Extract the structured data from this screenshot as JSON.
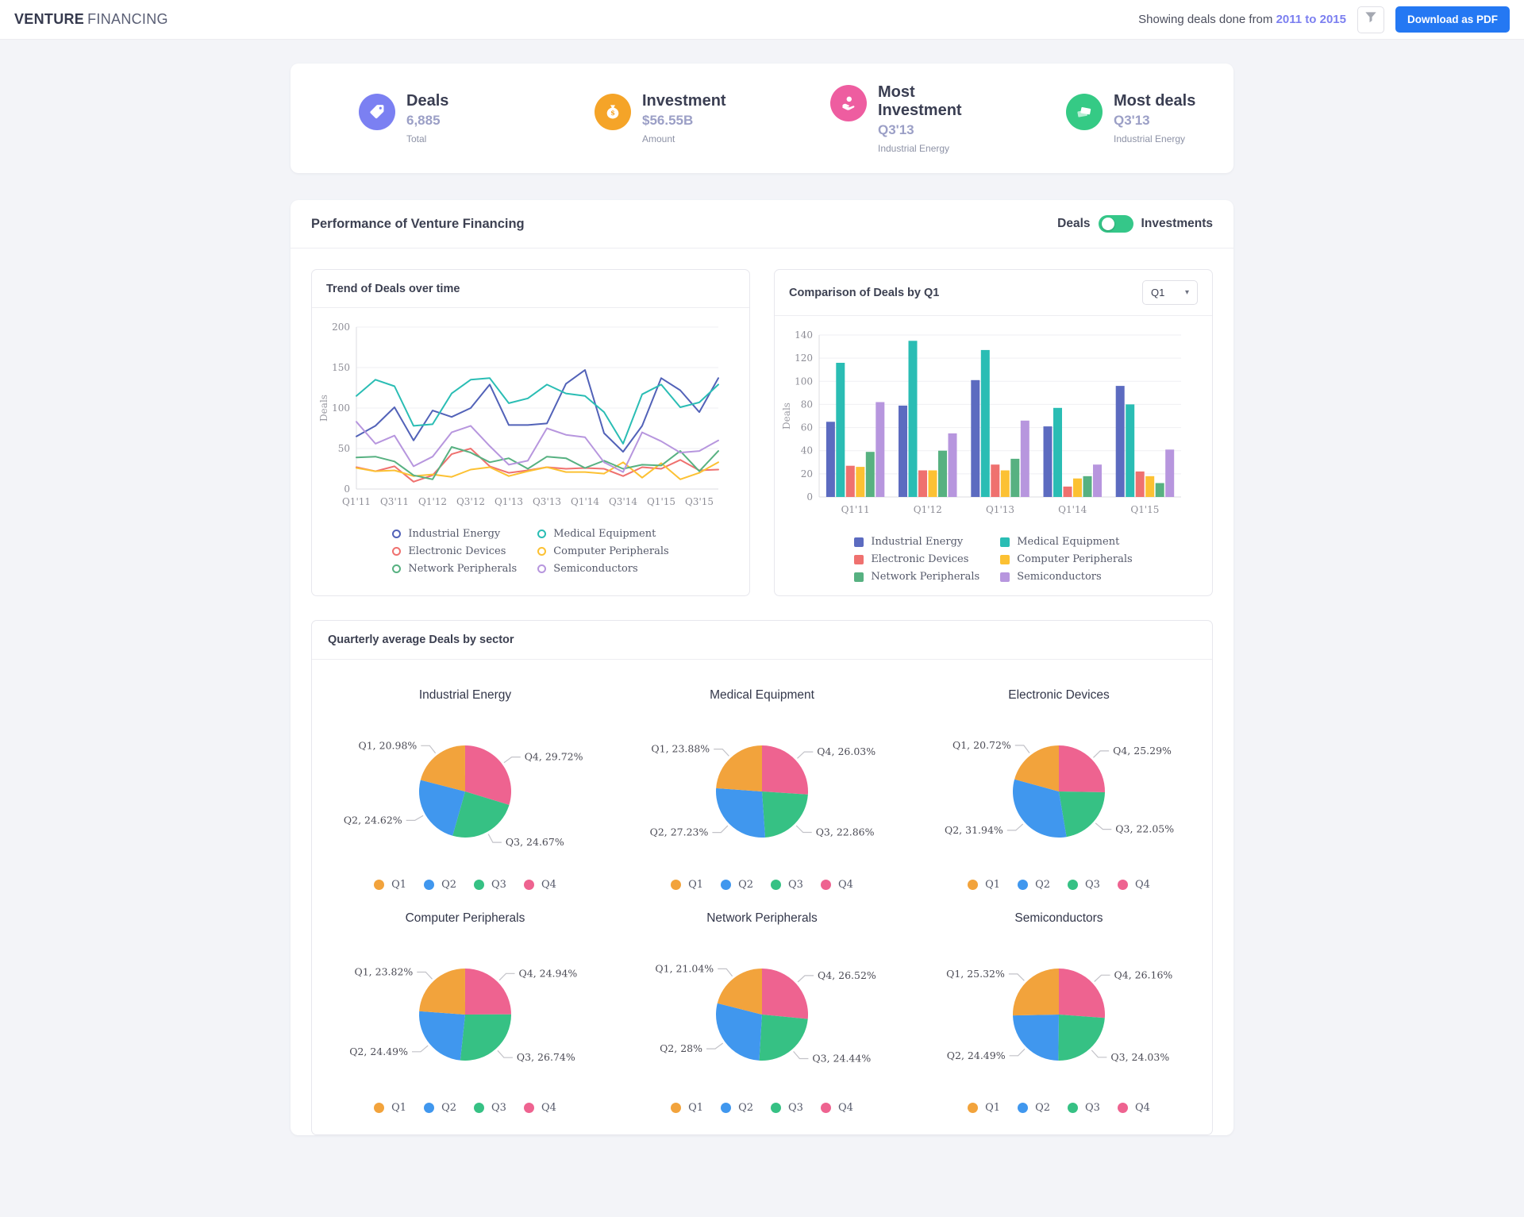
{
  "header": {
    "logo_bold": "VENTURE",
    "logo_light": "FINANCING",
    "showing_text": "Showing deals done from",
    "date_range": "2011 to 2015",
    "download_label": "Download as PDF"
  },
  "stats": [
    {
      "title": "Deals",
      "value": "6,885",
      "subtitle": "Total",
      "icon": "tag-icon",
      "color": "#7b80f2"
    },
    {
      "title": "Investment",
      "value": "$56.55B",
      "subtitle": "Amount",
      "icon": "money-bag-icon",
      "color": "#f5a428"
    },
    {
      "title": "Most Investment",
      "value": "Q3'13",
      "subtitle": "Industrial Energy",
      "icon": "hand-coin-icon",
      "color": "#ee5da0"
    },
    {
      "title": "Most deals",
      "value": "Q3'13",
      "subtitle": "Industrial Energy",
      "icon": "cash-notes-icon",
      "color": "#35ca85"
    }
  ],
  "performance": {
    "title": "Performance of Venture Financing",
    "toggle_left": "Deals",
    "toggle_right": "Investments",
    "toggle_color": "#35c789"
  },
  "sectors": [
    "Industrial Energy",
    "Medical Equipment",
    "Electronic Devices",
    "Computer Peripherals",
    "Network Peripherals",
    "Semiconductors"
  ],
  "quarter_legend": [
    "Q1",
    "Q2",
    "Q3",
    "Q4"
  ],
  "quarter_colors": [
    "#f2a33c",
    "#4097ee",
    "#36c184",
    "#ee6390"
  ],
  "quarterly_section_title": "Quarterly average Deals by sector",
  "chart_data": [
    {
      "type": "line",
      "title": "Trend of Deals over time",
      "ylabel": "Deals",
      "ylim": [
        0,
        200
      ],
      "yticks": [
        0,
        50,
        100,
        150,
        200
      ],
      "grid": "horizontal",
      "legend_position": "bottom",
      "x": [
        "Q1'11",
        "Q2'11",
        "Q3'11",
        "Q4'11",
        "Q1'12",
        "Q2'12",
        "Q3'12",
        "Q4'12",
        "Q1'13",
        "Q2'13",
        "Q3'13",
        "Q4'13",
        "Q1'14",
        "Q2'14",
        "Q3'14",
        "Q4'14",
        "Q1'15",
        "Q2'15",
        "Q3'15",
        "Q4'15"
      ],
      "x_ticks_shown": [
        "Q1'11",
        "Q3'11",
        "Q1'12",
        "Q3'12",
        "Q1'13",
        "Q3'13",
        "Q1'14",
        "Q3'14",
        "Q1'15",
        "Q3'15"
      ],
      "series": [
        {
          "name": "Industrial Energy",
          "color": "#5262b8",
          "values": [
            65,
            78,
            101,
            60,
            97,
            89,
            100,
            129,
            79,
            79,
            81,
            130,
            147,
            69,
            46,
            78,
            137,
            122,
            95,
            137
          ]
        },
        {
          "name": "Medical Equipment",
          "color": "#2abdb4",
          "values": [
            115,
            135,
            127,
            78,
            80,
            118,
            135,
            137,
            106,
            112,
            129,
            118,
            115,
            95,
            56,
            117,
            129,
            101,
            107,
            129
          ]
        },
        {
          "name": "Electronic Devices",
          "color": "#ef716f",
          "values": [
            27,
            22,
            28,
            9,
            17,
            43,
            50,
            28,
            20,
            23,
            27,
            25,
            26,
            25,
            16,
            27,
            25,
            36,
            23,
            24
          ]
        },
        {
          "name": "Computer Peripherals",
          "color": "#fcc133",
          "values": [
            26,
            22,
            23,
            16,
            18,
            15,
            24,
            27,
            16,
            22,
            27,
            21,
            21,
            19,
            33,
            14,
            32,
            12,
            20,
            33
          ]
        },
        {
          "name": "Network Peripherals",
          "color": "#57b181",
          "values": [
            39,
            40,
            34,
            17,
            12,
            52,
            45,
            33,
            38,
            25,
            40,
            38,
            26,
            35,
            25,
            30,
            29,
            47,
            22,
            47
          ]
        },
        {
          "name": "Semiconductors",
          "color": "#b796de",
          "values": [
            83,
            56,
            66,
            28,
            40,
            70,
            78,
            53,
            30,
            35,
            75,
            67,
            64,
            33,
            21,
            70,
            59,
            45,
            47,
            60
          ]
        }
      ]
    },
    {
      "type": "bar",
      "title": "Comparison of Deals by Q1",
      "selector_value": "Q1",
      "ylabel": "Deals",
      "ylim": [
        0,
        140
      ],
      "yticks": [
        0,
        20,
        40,
        60,
        80,
        100,
        120,
        140
      ],
      "grid": "horizontal",
      "legend_position": "bottom",
      "categories": [
        "Q1'11",
        "Q1'12",
        "Q1'13",
        "Q1'14",
        "Q1'15"
      ],
      "series": [
        {
          "name": "Industrial Energy",
          "color": "#5c6bc0",
          "values": [
            65,
            79,
            101,
            61,
            96
          ]
        },
        {
          "name": "Medical Equipment",
          "color": "#2abdb4",
          "values": [
            116,
            135,
            127,
            77,
            80
          ]
        },
        {
          "name": "Electronic Devices",
          "color": "#ef716f",
          "values": [
            27,
            23,
            28,
            9,
            22
          ]
        },
        {
          "name": "Computer Peripherals",
          "color": "#fcc133",
          "values": [
            26,
            23,
            23,
            16,
            18
          ]
        },
        {
          "name": "Network Peripherals",
          "color": "#57b181",
          "values": [
            39,
            40,
            33,
            18,
            12
          ]
        },
        {
          "name": "Semiconductors",
          "color": "#b796de",
          "values": [
            82,
            55,
            66,
            28,
            41
          ]
        }
      ]
    },
    {
      "type": "pie",
      "title": "Industrial Energy",
      "slices": [
        {
          "label": "Q1",
          "pct": 20.98,
          "display": "Q1, 20.98%"
        },
        {
          "label": "Q2",
          "pct": 24.62,
          "display": "Q2, 24.62%"
        },
        {
          "label": "Q3",
          "pct": 24.67,
          "display": "Q3, 24.67%"
        },
        {
          "label": "Q4",
          "pct": 29.72,
          "display": "Q4, 29.72%"
        }
      ]
    },
    {
      "type": "pie",
      "title": "Medical Equipment",
      "slices": [
        {
          "label": "Q1",
          "pct": 23.88,
          "display": "Q1, 23.88%"
        },
        {
          "label": "Q2",
          "pct": 27.23,
          "display": "Q2, 27.23%"
        },
        {
          "label": "Q3",
          "pct": 22.86,
          "display": "Q3, 22.86%"
        },
        {
          "label": "Q4",
          "pct": 26.03,
          "display": "Q4, 26.03%"
        }
      ]
    },
    {
      "type": "pie",
      "title": "Electronic Devices",
      "slices": [
        {
          "label": "Q1",
          "pct": 20.72,
          "display": "Q1, 20.72%"
        },
        {
          "label": "Q2",
          "pct": 31.94,
          "display": "Q2, 31.94%"
        },
        {
          "label": "Q3",
          "pct": 22.05,
          "display": "Q3, 22.05%"
        },
        {
          "label": "Q4",
          "pct": 25.29,
          "display": "Q4, 25.29%"
        }
      ]
    },
    {
      "type": "pie",
      "title": "Computer Peripherals",
      "slices": [
        {
          "label": "Q1",
          "pct": 23.82,
          "display": "Q1, 23.82%"
        },
        {
          "label": "Q2",
          "pct": 24.49,
          "display": "Q2, 24.49%"
        },
        {
          "label": "Q3",
          "pct": 26.74,
          "display": "Q3, 26.74%"
        },
        {
          "label": "Q4",
          "pct": 24.94,
          "display": "Q4, 24.94%"
        }
      ]
    },
    {
      "type": "pie",
      "title": "Network Peripherals",
      "slices": [
        {
          "label": "Q1",
          "pct": 21.04,
          "display": "Q1, 21.04%"
        },
        {
          "label": "Q2",
          "pct": 28,
          "display": "Q2, 28%"
        },
        {
          "label": "Q3",
          "pct": 24.44,
          "display": "Q3, 24.44%"
        },
        {
          "label": "Q4",
          "pct": 26.52,
          "display": "Q4, 26.52%"
        }
      ]
    },
    {
      "type": "pie",
      "title": "Semiconductors",
      "slices": [
        {
          "label": "Q1",
          "pct": 25.32,
          "display": "Q1, 25.32%"
        },
        {
          "label": "Q2",
          "pct": 24.49,
          "display": "Q2, 24.49%"
        },
        {
          "label": "Q3",
          "pct": 24.03,
          "display": "Q3, 24.03%"
        },
        {
          "label": "Q4",
          "pct": 26.16,
          "display": "Q4, 26.16%"
        }
      ]
    }
  ]
}
